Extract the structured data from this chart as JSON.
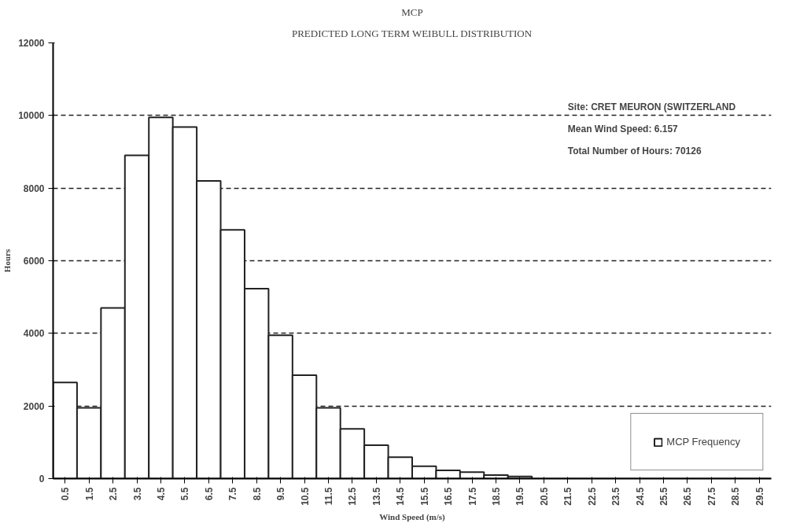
{
  "chart_data": {
    "type": "bar",
    "title": "MCP",
    "subtitle": "PREDICTED LONG TERM WEIBULL DISTRIBUTION",
    "xlabel": "Wind Speed (m/s)",
    "ylabel": "Hours",
    "categories": [
      "0.5",
      "1.5",
      "2.5",
      "3.5",
      "4.5",
      "5.5",
      "6.5",
      "7.5",
      "8.5",
      "9.5",
      "10.5",
      "11.5",
      "12.5",
      "13.5",
      "14.5",
      "15.5",
      "16.5",
      "17.5",
      "18.5",
      "19.5",
      "20.5",
      "21.5",
      "22.5",
      "23.5",
      "24.5",
      "25.5",
      "26.5",
      "27.5",
      "28.5",
      "29.5"
    ],
    "series": [
      {
        "name": "MCP Frequency",
        "color": "#ffffff",
        "values": [
          2650,
          1950,
          4700,
          8900,
          9950,
          9680,
          8200,
          6850,
          5230,
          3950,
          2850,
          1950,
          1370,
          920,
          590,
          340,
          230,
          180,
          100,
          60,
          0,
          0,
          0,
          0,
          0,
          0,
          0,
          0,
          0,
          0
        ]
      }
    ],
    "ylim": [
      0,
      12000
    ],
    "yticks": [
      0,
      2000,
      4000,
      6000,
      8000,
      10000,
      12000
    ],
    "grid": "y",
    "legend": "bottom right",
    "annotations": [
      "Site:  CRET MEURON (SWITZERLAND",
      "Mean Wind Speed:  6.157",
      "Total Number of Hours:  70126"
    ]
  }
}
